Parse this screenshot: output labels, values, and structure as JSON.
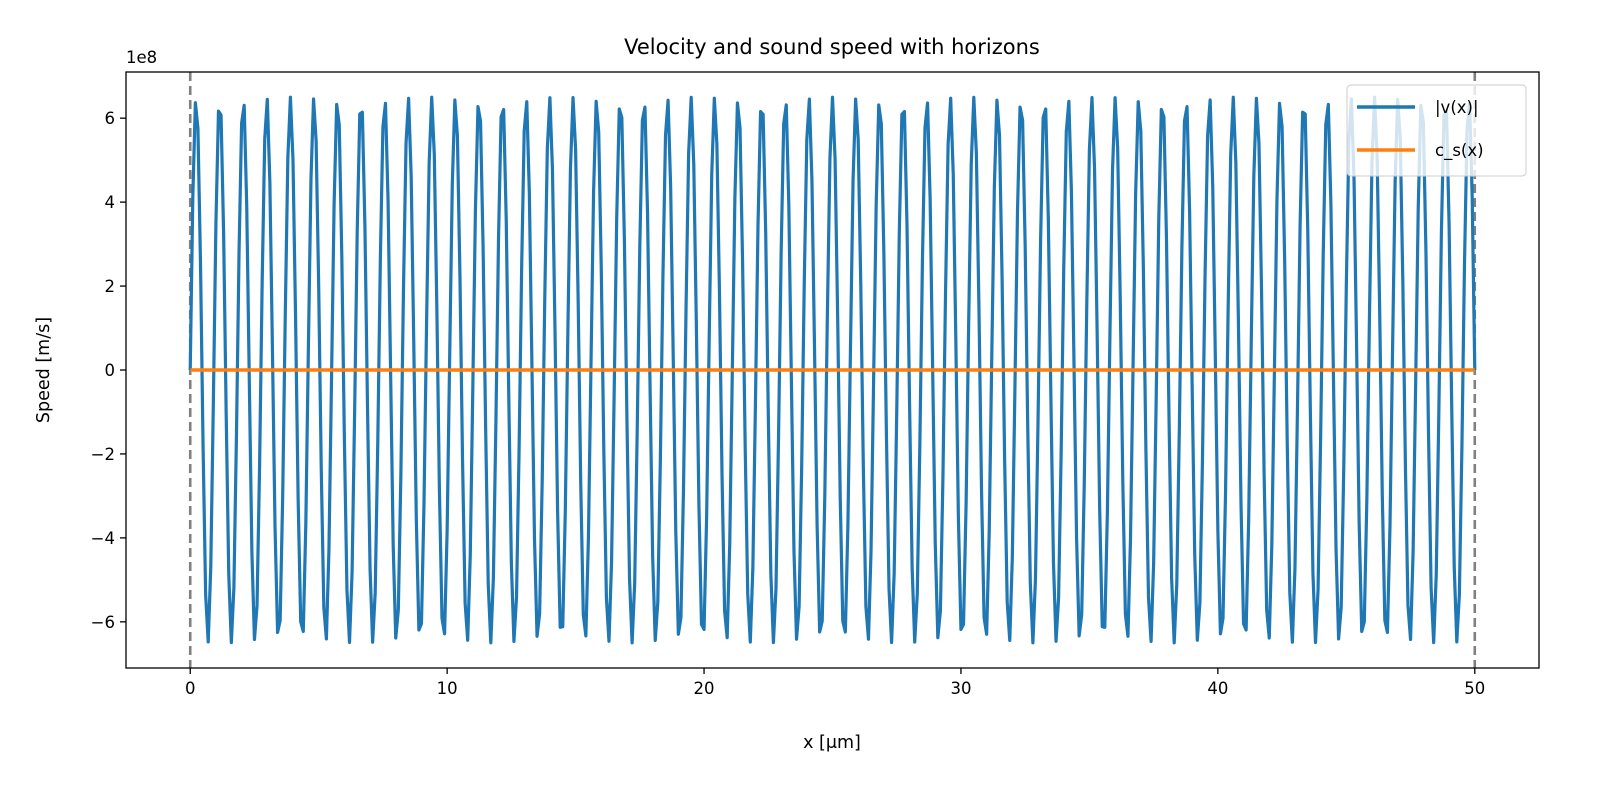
{
  "chart_data": {
    "type": "line",
    "title": "Velocity and sound speed with horizons",
    "xlabel": "x [μm]",
    "ylabel": "Speed [m/s]",
    "offset_text": "1e8",
    "y_scale_factor": 100000000,
    "xlim": [
      -2.5,
      52.5
    ],
    "ylim": [
      -7.1,
      7.1
    ],
    "x_ticks": [
      0,
      10,
      20,
      30,
      40,
      50
    ],
    "x_tick_labels": [
      "0",
      "10",
      "20",
      "30",
      "40",
      "50"
    ],
    "y_ticks": [
      -6,
      -4,
      -2,
      0,
      2,
      4,
      6
    ],
    "y_tick_labels": [
      "−6",
      "−4",
      "−2",
      "0",
      "2",
      "4",
      "6"
    ],
    "grid": false,
    "legend_position": "upper right",
    "vertical_lines": [
      {
        "x": 0,
        "style": "dashed",
        "color": "#808080"
      },
      {
        "x": 50,
        "style": "dashed",
        "color": "#808080"
      }
    ],
    "series": [
      {
        "name": "|v(x)|",
        "color": "#1f77b4",
        "description": "oscillating velocity between about -6.5e8 and 6.5e8 m/s over x = 0 to 50 μm",
        "x_range": [
          0,
          50
        ],
        "amplitude": 6.5,
        "cycles": 54.5,
        "samples": 500
      },
      {
        "name": "c_s(x)",
        "color": "#ff7f0e",
        "x": [
          0,
          50
        ],
        "y": [
          0,
          0
        ]
      }
    ]
  }
}
